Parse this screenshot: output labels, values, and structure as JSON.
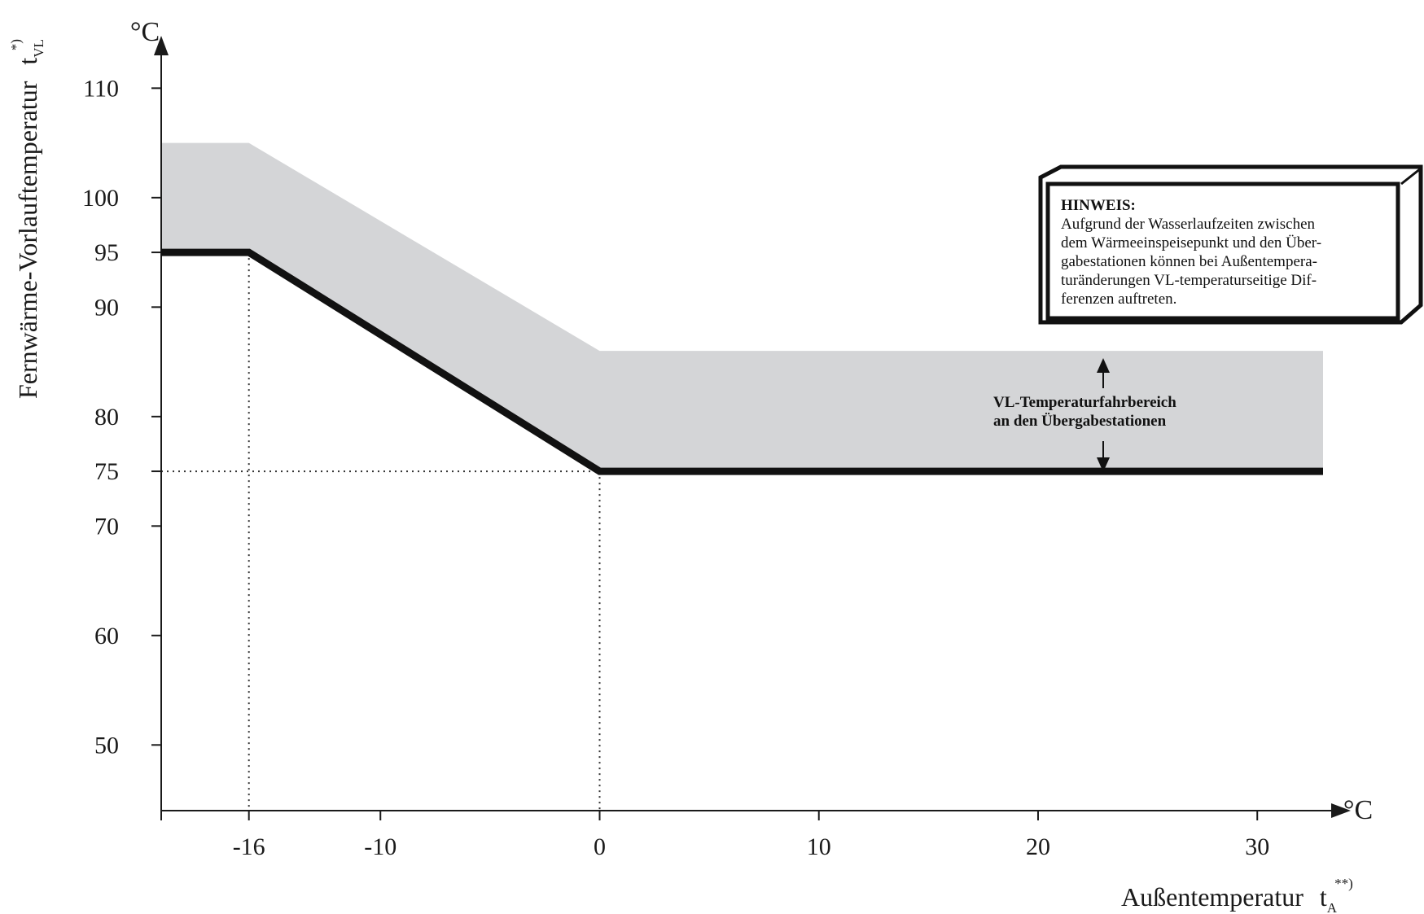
{
  "chart_data": {
    "type": "line",
    "y_axis": {
      "label": "Fernwärme-Vorlauftemperatur",
      "symbol": "t",
      "subscript": "VL",
      "superscript": "*)",
      "unit": "°C",
      "ticks": [
        110,
        100,
        95,
        90,
        80,
        75,
        70,
        60,
        50
      ],
      "tick_labels": [
        "110",
        "100",
        "95",
        "90",
        "80",
        "75",
        "70",
        "60",
        "50"
      ]
    },
    "x_axis": {
      "label": "Außentemperatur",
      "symbol": "t",
      "subscript": "A",
      "superscript": "**)",
      "unit": "°C",
      "ticks": [
        -16,
        -10,
        0,
        10,
        20,
        30
      ],
      "tick_labels": [
        "-16",
        "-10",
        "0",
        "10",
        "20",
        "30"
      ],
      "minor_ticks": [
        -20
      ]
    },
    "xlim": [
      -20,
      33
    ],
    "ylim": [
      44,
      113
    ],
    "series": [
      {
        "x": [
          -20,
          -16,
          0,
          33
        ],
        "y": [
          95,
          95,
          75,
          75
        ]
      }
    ],
    "band": {
      "label_lines": [
        "VL-Temperaturfahrbereich",
        "an den Übergabestationen"
      ],
      "upper": {
        "x": [
          -20,
          -16,
          0,
          33
        ],
        "y": [
          105,
          105,
          86,
          86
        ]
      },
      "lower": {
        "x": [
          -20,
          -16,
          0,
          33
        ],
        "y": [
          95,
          95,
          75,
          75
        ]
      }
    },
    "reference_lines": {
      "vertical": [
        {
          "x": -16,
          "y_top": 95
        },
        {
          "x": 0,
          "y_top": 75
        }
      ],
      "horizontal": [
        {
          "y": 75,
          "x_right": 0
        }
      ]
    },
    "note": {
      "title": "HINWEIS:",
      "lines": [
        "Aufgrund der Wasserlaufzeiten zwischen",
        "dem Wärmeeinspeisepunkt und den Über-",
        "gabestationen können bei Außentempera-",
        "turänderungen VL-temperaturseitige Dif-",
        "ferenzen auftreten."
      ]
    },
    "colors": {
      "band": "#d4d5d7",
      "line": "#111111",
      "axis": "#1a1a1a"
    },
    "grid": false
  }
}
